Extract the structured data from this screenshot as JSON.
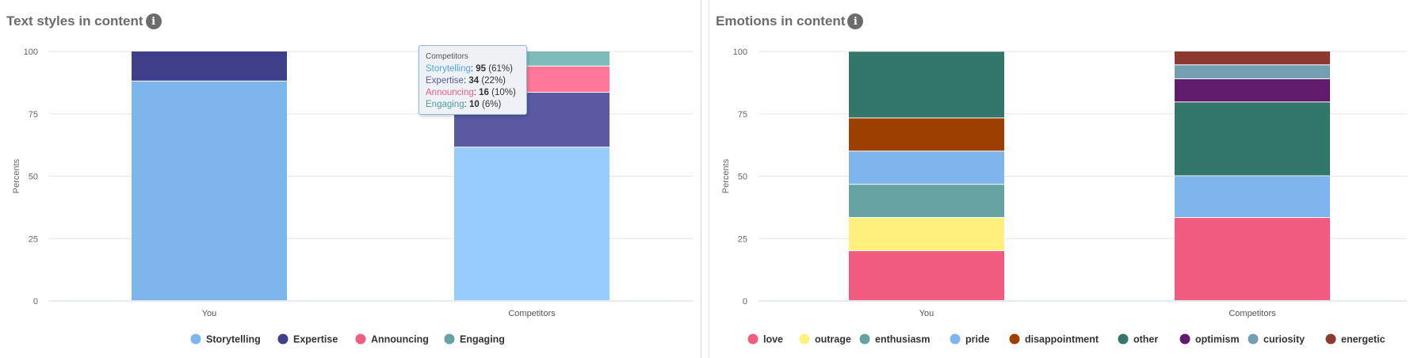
{
  "colors": {
    "Storytelling_you": "#7db4ec",
    "Storytelling_comp": "#99ccfe",
    "Expertise_you": "#3e3f88",
    "Expertise_comp": "#5a5aa3",
    "Announcing": "#ff7799",
    "Engaging": "#7fbcb9",
    "love": "#f25c80",
    "outrage": "#fdf07b",
    "enthusiasm": "#65a2a1",
    "pride": "#7db4ec",
    "disappointment": "#9c3f00",
    "other": "#33766a",
    "optimism": "#621c6e",
    "curiosity": "#739fb3",
    "energetic": "#8c3a2f"
  },
  "chart_data": [
    {
      "type": "bar",
      "stacked": true,
      "title": "Text styles in content",
      "info_icon": "info-icon",
      "ylabel": "Percents",
      "ylim": [
        0,
        100
      ],
      "yticks": [
        0,
        25,
        50,
        75,
        100
      ],
      "categories": [
        "You",
        "Competitors"
      ],
      "legend_position": "bottom",
      "series": [
        {
          "name": "Storytelling",
          "values": [
            88,
            61.5
          ],
          "legend_color": "#7db4ec"
        },
        {
          "name": "Expertise",
          "values": [
            12,
            22
          ],
          "legend_color": "#3e3f88"
        },
        {
          "name": "Announcing",
          "values": [
            0,
            10.5
          ],
          "legend_color": "#f25c80"
        },
        {
          "name": "Engaging",
          "values": [
            0,
            6
          ],
          "legend_color": "#65a2a1"
        }
      ],
      "tooltip": {
        "title": "Competitors",
        "rows": [
          {
            "name": "Storytelling",
            "count": "95",
            "pct": "(61%)",
            "color": "#5aa2e0"
          },
          {
            "name": "Expertise",
            "count": "34",
            "pct": "(22%)",
            "color": "#5a5aa3"
          },
          {
            "name": "Announcing",
            "count": "16",
            "pct": "(10%)",
            "color": "#f25c80"
          },
          {
            "name": "Engaging",
            "count": "10",
            "pct": "(6%)",
            "color": "#4f9d99"
          }
        ]
      }
    },
    {
      "type": "bar",
      "stacked": true,
      "title": "Emotions in content",
      "info_icon": "info-icon",
      "ylabel": "Percents",
      "ylim": [
        0,
        100
      ],
      "yticks": [
        0,
        25,
        50,
        75,
        100
      ],
      "categories": [
        "You",
        "Competitors"
      ],
      "legend_position": "bottom",
      "series": [
        {
          "name": "love",
          "values": [
            20,
            33.3
          ]
        },
        {
          "name": "outrage",
          "values": [
            13.3,
            0
          ]
        },
        {
          "name": "enthusiasm",
          "values": [
            13.3,
            0
          ]
        },
        {
          "name": "pride",
          "values": [
            13.3,
            16.7
          ]
        },
        {
          "name": "disappointment",
          "values": [
            13.3,
            0
          ]
        },
        {
          "name": "other",
          "values": [
            26.7,
            29.6
          ]
        },
        {
          "name": "optimism",
          "values": [
            0,
            9.3
          ]
        },
        {
          "name": "curiosity",
          "values": [
            0,
            5.6
          ]
        },
        {
          "name": "energetic",
          "values": [
            0,
            5.5
          ]
        }
      ]
    }
  ]
}
